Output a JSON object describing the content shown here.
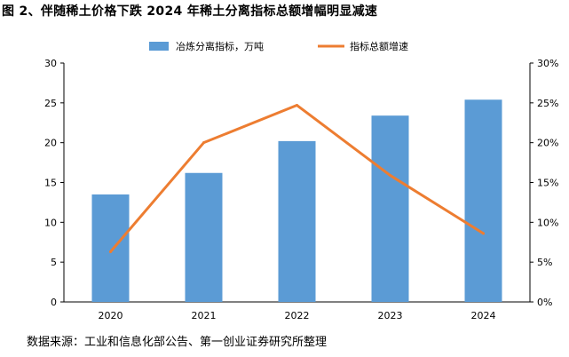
{
  "title": "图 2、伴随稀土价格下跌 2024 年稀土分离指标总额增幅明显减速",
  "source": "数据来源：工业和信息化部公告、第一创业证券研究所整理",
  "chart_data": {
    "type": "bar+line",
    "categories": [
      "2020",
      "2021",
      "2022",
      "2023",
      "2024"
    ],
    "series": [
      {
        "name": "冶炼分离指标，万吨",
        "type": "bar",
        "axis": "left",
        "values": [
          13.5,
          16.2,
          20.2,
          23.4,
          25.4
        ],
        "color": "#5b9bd5"
      },
      {
        "name": "指标总额增速",
        "type": "line",
        "axis": "right",
        "values": [
          6.3,
          20.0,
          24.7,
          15.9,
          8.6
        ],
        "color": "#ed7d31"
      }
    ],
    "left_axis": {
      "ylim": [
        0,
        30
      ],
      "ticks": [
        "0",
        "5",
        "10",
        "15",
        "20",
        "25",
        "30"
      ]
    },
    "right_axis": {
      "ylim": [
        0,
        30
      ],
      "ticks": [
        "0%",
        "5%",
        "10%",
        "15%",
        "20%",
        "25%",
        "30%"
      ]
    },
    "grid": false,
    "legend": "top-center"
  }
}
